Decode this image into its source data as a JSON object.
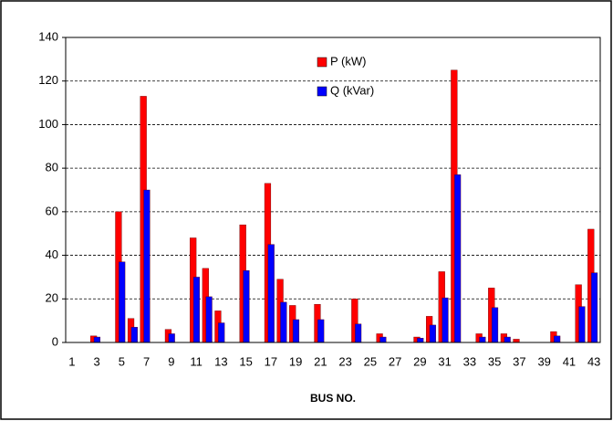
{
  "chart_data": {
    "type": "bar",
    "x_label": "BUS NO.",
    "categories": [
      "1",
      null,
      "3",
      null,
      "5",
      null,
      "7",
      null,
      "9",
      null,
      "11",
      null,
      "13",
      null,
      "15",
      null,
      "17",
      null,
      "19",
      null,
      "21",
      null,
      "23",
      null,
      "25",
      null,
      "27",
      null,
      "29",
      null,
      "31",
      null,
      "33",
      null,
      "35",
      null,
      "37",
      null,
      "39",
      null,
      "41",
      null,
      "43"
    ],
    "series": [
      {
        "name": "P (kW)",
        "color": "#ff0000",
        "values": [
          0,
          0,
          3,
          0,
          60,
          11,
          113,
          0,
          6,
          0,
          48,
          34,
          14.5,
          0,
          54,
          0,
          73,
          29,
          17,
          0,
          17.5,
          0,
          0,
          20,
          0,
          4,
          0,
          0,
          2.5,
          12,
          32.5,
          125,
          0,
          4,
          25,
          4,
          1.5,
          0,
          0,
          5,
          0,
          26.5,
          52
        ]
      },
      {
        "name": "Q (kVar)",
        "color": "#0000ff",
        "values": [
          0,
          0,
          2.5,
          0,
          37,
          7,
          70,
          0,
          4,
          0,
          30,
          21,
          9,
          0,
          33,
          0,
          45,
          18.5,
          10.5,
          0,
          10.5,
          0,
          0,
          8.5,
          0,
          2.5,
          0,
          0,
          2,
          8,
          20.5,
          77,
          0,
          2.5,
          16,
          2.5,
          0,
          0,
          0,
          3,
          0,
          16.5,
          32
        ]
      }
    ],
    "ylim": [
      0,
      140
    ],
    "yticks": [
      0,
      20,
      40,
      60,
      80,
      100,
      120,
      140
    ],
    "grid": true
  }
}
